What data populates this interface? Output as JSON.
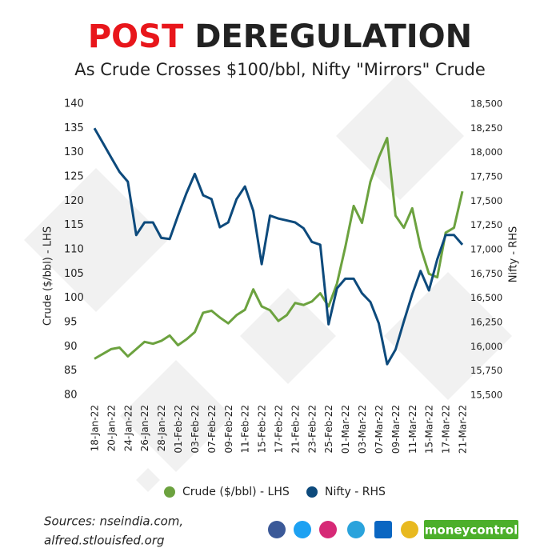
{
  "chart_data": {
    "type": "line",
    "title_part1": "POST",
    "title_part2": "DEREGULATION",
    "subtitle": "As Crude Crosses $100/bbl, Nifty \"Mirrors\" Crude",
    "y_label": "Crude ($/bbl) - LHS",
    "y2_label": "Nifty - RHS",
    "categories": [
      "18-Jan-22",
      null,
      "20-Jan-22",
      null,
      "24-Jan-22",
      null,
      "26-Jan-22",
      null,
      "28-Jan-22",
      null,
      "01-Feb-22",
      null,
      "03-Feb-22",
      null,
      "07-Feb-22",
      null,
      "09-Feb-22",
      null,
      "11-Feb-22",
      null,
      "15-Feb-22",
      null,
      "17-Feb-22",
      null,
      "21-Feb-22",
      null,
      "23-Feb-22",
      null,
      "25-Feb-22",
      null,
      "01-Mar-22",
      null,
      "03-Mar-22",
      null,
      "07-Mar-22",
      null,
      "09-Mar-22",
      null,
      "11-Mar-22",
      null,
      "15-Mar-22",
      null,
      "17-Mar-22",
      null,
      "21-Mar-22"
    ],
    "series": [
      {
        "name": "Crude ($/bbl) - LHS",
        "color": "#6ca23f",
        "axis": "y",
        "values": [
          87.5,
          88.5,
          89.5,
          89.8,
          88,
          89.5,
          91,
          90.6,
          91.2,
          92.3,
          90.3,
          91.5,
          93,
          97,
          97.4,
          96,
          94.8,
          96.5,
          97.6,
          101.8,
          98.3,
          97.5,
          95.3,
          96.5,
          99,
          98.6,
          99.3,
          101,
          98.3,
          103,
          110.5,
          119,
          115.5,
          124,
          129,
          133,
          117,
          114.5,
          118.5,
          110.5,
          105,
          104.3,
          113.5,
          114.5,
          122
        ]
      },
      {
        "name": "Nifty - RHS",
        "color": "#0d4a7c",
        "axis": "y2",
        "values": [
          18250,
          18100,
          17950,
          17800,
          17700,
          17150,
          17280,
          17280,
          17120,
          17110,
          17350,
          17580,
          17780,
          17560,
          17520,
          17230,
          17280,
          17520,
          17650,
          17400,
          16850,
          17350,
          17320,
          17300,
          17280,
          17220,
          17080,
          17050,
          16230,
          16600,
          16700,
          16700,
          16550,
          16460,
          16240,
          15820,
          15970,
          16260,
          16540,
          16780,
          16580,
          16900,
          17150,
          17150,
          17050
        ]
      }
    ],
    "ylim": [
      80,
      140
    ],
    "yticks": [
      80,
      85,
      90,
      95,
      100,
      105,
      110,
      115,
      120,
      125,
      130,
      135,
      140
    ],
    "y2lim": [
      15500,
      18500
    ],
    "y2ticks": [
      {
        "value": 15500,
        "label": "15,500"
      },
      {
        "value": 15750,
        "label": "15,750"
      },
      {
        "value": 16000,
        "label": "16,000"
      },
      {
        "value": 16250,
        "label": "16,250"
      },
      {
        "value": 16500,
        "label": "16,500"
      },
      {
        "value": 16750,
        "label": "16,750"
      },
      {
        "value": 17000,
        "label": "17,000"
      },
      {
        "value": 17250,
        "label": "17,250"
      },
      {
        "value": 17500,
        "label": "17,500"
      },
      {
        "value": 17750,
        "label": "17,750"
      },
      {
        "value": 18000,
        "label": "18,000"
      },
      {
        "value": 18250,
        "label": "18,250"
      },
      {
        "value": 18500,
        "label": "18,500"
      }
    ],
    "sources": [
      "Sources: nseindia.com,",
      "alfred.stlouisfed.org"
    ],
    "brand": "moneycontrol"
  }
}
